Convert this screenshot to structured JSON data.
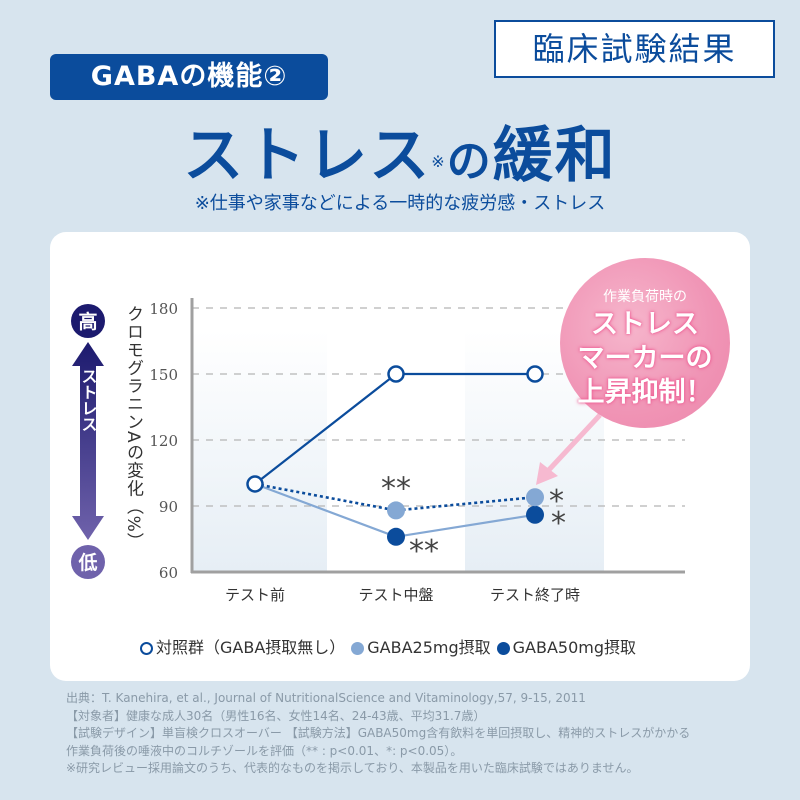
{
  "header": {
    "badge": "GABAの機能②",
    "result_box": "臨床試験結果",
    "headline_main": "ストレス",
    "headline_note_mark": "※",
    "headline_particle": "の",
    "headline_end": "緩和",
    "subline": "※仕事や家事などによる一時的な疲労感・ストレス"
  },
  "stress_scale": {
    "high": "高",
    "low": "低",
    "label": "ストレス"
  },
  "callout": {
    "line_small": "作業負荷時の",
    "line1": "ストレス",
    "line2": "マーカーの",
    "line3": "上昇抑制！"
  },
  "legend": [
    {
      "label": "対照群（GABA摂取無し）",
      "style": "open",
      "color": "#0b4c9c"
    },
    {
      "label": "GABA25mg摂取",
      "style": "filled",
      "color": "#84a8d4"
    },
    {
      "label": "GABA50mg摂取",
      "style": "filled",
      "color": "#0b4c9c"
    }
  ],
  "footer": [
    "出典：T. Kanehira, et al., Journal of NutritionalScience and Vitaminology,57, 9-15, 2011",
    "【対象者】健康な成人30名（男性16名、女性14名、24-43歳、平均31.7歳）",
    "【試験デザイン】単盲検クロスオーバー 【試験方法】GABA50mg含有飲料を単回摂取し、精神的ストレスがかかる",
    "作業負荷後の唾液中のコルチゾールを評価（** : p<0.01、*: p<0.05）。",
    "※研究レビュー採用論文のうち、代表的なものを掲示しており、本製品を用いた臨床試験ではありません。"
  ],
  "chart_data": {
    "type": "line",
    "title": "ストレスの緩和",
    "xlabel": "",
    "ylabel": "クロモグラニンAの変化（%）",
    "categories": [
      "テスト前",
      "テスト中盤",
      "テスト終了時"
    ],
    "ylim": [
      60,
      180
    ],
    "yticks": [
      60,
      90,
      120,
      150,
      180
    ],
    "grid": true,
    "legend_position": "bottom",
    "series": [
      {
        "name": "対照群（GABA摂取無し）",
        "values": [
          100,
          150,
          150
        ],
        "marker": "open-circle",
        "line": "solid",
        "color": "#0b4c9c"
      },
      {
        "name": "GABA25mg摂取",
        "values": [
          100,
          88,
          94
        ],
        "marker": "filled-circle",
        "line": "dotted",
        "color": "#84a8d4",
        "significance": [
          "",
          "**",
          "*"
        ]
      },
      {
        "name": "GABA50mg摂取",
        "values": [
          100,
          76,
          86
        ],
        "marker": "filled-circle",
        "line": "solid-light",
        "color": "#0b4c9c",
        "significance": [
          "",
          "**",
          "*"
        ]
      }
    ]
  }
}
